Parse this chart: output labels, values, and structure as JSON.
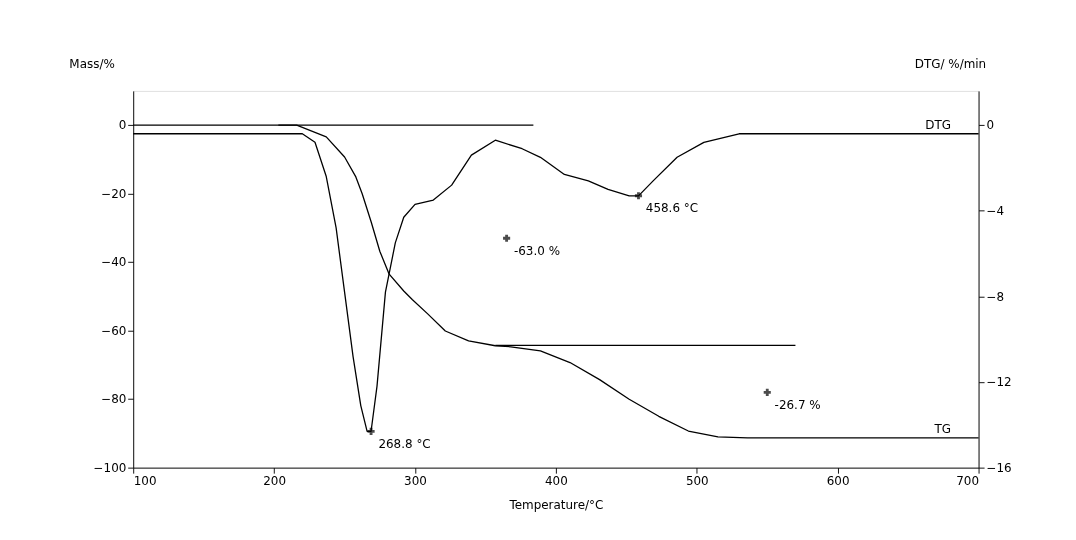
{
  "chart_data": {
    "type": "line",
    "xlabel": "Temperature/°C",
    "ylabel": "Mass/%",
    "y2label": "DTG/ %/min",
    "xlim": [
      100,
      700
    ],
    "xticks": [
      100,
      200,
      300,
      400,
      500,
      600,
      700
    ],
    "ylim": [
      -100,
      10
    ],
    "yticks": [
      -100,
      -80,
      -60,
      -40,
      -20,
      0
    ],
    "y2lim": [
      -16,
      1.6
    ],
    "y2ticks": [
      -16,
      -12,
      -8,
      -4,
      0
    ],
    "grid": false,
    "legend": "right",
    "line_style": "solid",
    "series": [
      {
        "name": "TG",
        "color": "#000000",
        "x": [
          100,
          216,
          237,
          250,
          258,
          262.5,
          269,
          275,
          281.5,
          292,
          298,
          309,
          321.5,
          338,
          357,
          368,
          389,
          410,
          431,
          452,
          473,
          494,
          515,
          536,
          700
        ],
        "values": [
          0,
          0,
          -3.4,
          -9.3,
          -15.1,
          -20,
          -28.4,
          -36.8,
          -43.4,
          -48.4,
          -50.9,
          -55.1,
          -60.1,
          -63,
          -64.4,
          -64.7,
          -65.9,
          -69.3,
          -74.3,
          -80,
          -85,
          -89.3,
          -91,
          -91.3,
          -91.3
        ]
      },
      {
        "name": "DTG",
        "color": "#000000",
        "axis": "y2",
        "x": [
          100,
          220,
          229,
          237,
          244,
          250,
          256,
          261.5,
          266,
          268.8,
          273,
          279,
          286,
          292,
          300,
          313,
          326,
          340,
          357,
          376,
          389,
          406,
          423,
          437,
          452,
          458.6,
          469,
          486,
          505,
          530,
          700
        ],
        "values": [
          -0.4,
          -0.4,
          -0.8,
          -2.4,
          -4.8,
          -7.8,
          -10.8,
          -13.1,
          -14.3,
          -14.3,
          -12.2,
          -7.8,
          -5.5,
          -4.3,
          -3.7,
          -3.5,
          -2.8,
          -1.4,
          -0.7,
          -1.1,
          -1.5,
          -2.3,
          -2.6,
          -3.0,
          -3.3,
          -3.3,
          -2.6,
          -1.5,
          -0.8,
          -0.4,
          -0.4
        ]
      },
      {
        "type": "line",
        "color": "#000000",
        "x": [
          203,
          384
        ],
        "values": [
          0,
          0
        ]
      },
      {
        "type": "line",
        "color": "#000000",
        "x": [
          357,
          570
        ],
        "values": [
          -64.3,
          -64.3
        ]
      }
    ],
    "annotations": [
      {
        "text": "268.8 °C",
        "x": 268.8,
        "y": -89.4
      },
      {
        "text": "458.6 °C",
        "x": 458.6,
        "y": -20.6
      },
      {
        "text": "-63.0 %",
        "x": 365,
        "y": -33
      },
      {
        "text": "-26.7 %",
        "x": 550,
        "y": -78
      }
    ]
  }
}
